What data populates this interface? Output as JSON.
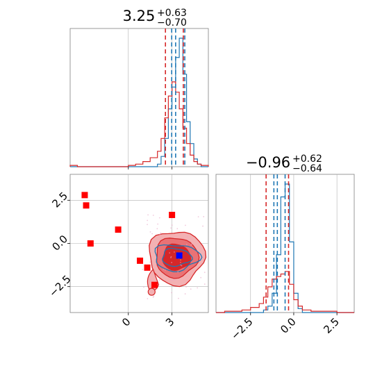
{
  "chart_data": [
    {
      "panel": "top-left",
      "type": "histogram",
      "title": {
        "main": "3.25",
        "sup": "+0.63",
        "sub": "−0.70"
      },
      "xlim": [
        -4,
        5.5
      ],
      "vlines_blue": [
        2.98,
        3.25,
        3.88
      ],
      "vlines_red": [
        2.55,
        3.78
      ],
      "series": [
        {
          "color": "#1f77b4",
          "bins": [
            -4.0,
            -3.5,
            -3.0,
            -2.5,
            -2.0,
            -1.5,
            -1.0,
            -0.5,
            0.0,
            0.5,
            1.0,
            1.5,
            2.0,
            2.25,
            2.5,
            2.75,
            3.0,
            3.25,
            3.5,
            3.75,
            4.0,
            4.25,
            4.5,
            4.75,
            5.0,
            5.5
          ],
          "counts": [
            0,
            0,
            0,
            0,
            0,
            0,
            0,
            0,
            0,
            0,
            0,
            0,
            0.02,
            0.08,
            0.22,
            0.45,
            0.62,
            0.85,
            1.0,
            0.72,
            0.35,
            0.18,
            0.06,
            0.02,
            0
          ]
        },
        {
          "color": "#d62728",
          "bins": [
            -4.0,
            -3.5,
            -3.0,
            -2.5,
            -2.0,
            -1.5,
            -1.0,
            -0.5,
            0.0,
            0.5,
            1.0,
            1.5,
            2.0,
            2.25,
            2.5,
            2.75,
            3.0,
            3.25,
            3.5,
            3.75,
            4.0,
            4.25,
            4.5,
            4.75,
            5.0,
            5.5
          ],
          "counts": [
            0.01,
            0,
            0,
            0,
            0,
            0,
            0,
            0,
            0.01,
            0.02,
            0.04,
            0.07,
            0.12,
            0.22,
            0.38,
            0.55,
            0.66,
            0.58,
            0.45,
            0.3,
            0.18,
            0.09,
            0.04,
            0.02,
            0.01
          ]
        }
      ]
    },
    {
      "panel": "bottom-left",
      "type": "scatter",
      "xlim": [
        -4,
        5.5
      ],
      "ylim": [
        -4,
        4
      ],
      "x_ticks": [
        "0",
        "3"
      ],
      "x_tick_values": [
        0,
        3
      ],
      "y_ticks": [
        "2.5",
        "0.0",
        "−2.5"
      ],
      "y_tick_values": [
        2.5,
        0.0,
        -2.5
      ],
      "grid": true,
      "red_squares": [
        {
          "x": -3.0,
          "y": 2.8
        },
        {
          "x": -2.9,
          "y": 2.2
        },
        {
          "x": -2.6,
          "y": 0.0
        },
        {
          "x": -0.7,
          "y": 0.8
        },
        {
          "x": 0.8,
          "y": -1.0
        },
        {
          "x": 1.3,
          "y": -1.4
        },
        {
          "x": 1.8,
          "y": -2.4
        },
        {
          "x": 3.0,
          "y": 1.65
        }
      ],
      "blue_marker": {
        "x": 3.5,
        "y": -0.7
      },
      "contour_colors": [
        "#f3b1b3",
        "#e97275",
        "#d62728",
        "#1f77b4"
      ]
    },
    {
      "panel": "bottom-right",
      "type": "histogram",
      "title": {
        "main": "−0.96",
        "sup": "+0.62",
        "sub": "−0.64"
      },
      "xlim": [
        -4.5,
        3.5
      ],
      "x_ticks": [
        "−2.5",
        "0.0",
        "2.5"
      ],
      "x_tick_values": [
        -2.5,
        0.0,
        2.5
      ],
      "grid": true,
      "vlines_blue": [
        -1.15,
        -0.95,
        -0.5
      ],
      "vlines_red": [
        -1.6,
        -0.3
      ],
      "series": [
        {
          "color": "#1f77b4",
          "bins": [
            -4.5,
            -4.0,
            -3.5,
            -3.0,
            -2.5,
            -2.0,
            -1.75,
            -1.5,
            -1.25,
            -1.0,
            -0.75,
            -0.5,
            -0.25,
            0.0,
            0.25,
            0.5,
            1.0,
            1.5,
            2.0,
            2.5,
            3.0,
            3.5
          ],
          "counts": [
            0,
            0,
            0,
            0,
            0,
            0,
            0.02,
            0.05,
            0.15,
            0.45,
            0.9,
            1.0,
            0.55,
            0.15,
            0.03,
            0,
            0,
            0,
            0,
            0,
            0
          ]
        },
        {
          "color": "#d62728",
          "bins": [
            -4.5,
            -4.0,
            -3.5,
            -3.0,
            -2.5,
            -2.0,
            -1.75,
            -1.5,
            -1.25,
            -1.0,
            -0.75,
            -0.5,
            -0.25,
            0.0,
            0.25,
            0.5,
            1.0,
            1.5,
            2.0,
            2.5,
            3.0,
            3.5
          ],
          "counts": [
            0,
            0.01,
            0.01,
            0.02,
            0.04,
            0.07,
            0.12,
            0.2,
            0.26,
            0.28,
            0.3,
            0.32,
            0.22,
            0.1,
            0.05,
            0.02,
            0.01,
            0.01,
            0.01,
            0.0,
            0.0
          ]
        }
      ]
    }
  ]
}
